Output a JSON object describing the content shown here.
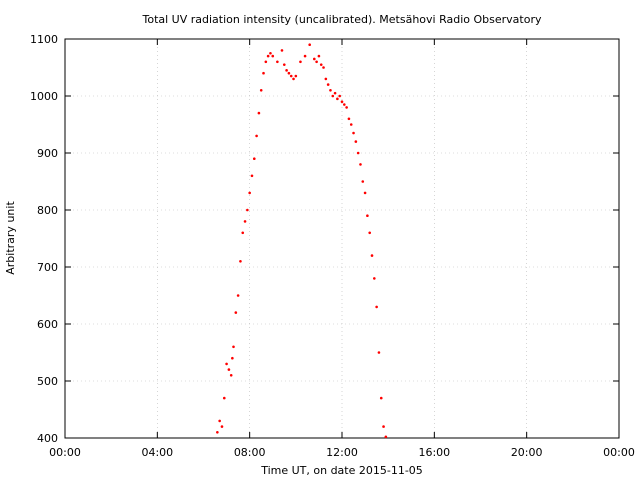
{
  "chart_data": {
    "type": "scatter",
    "title": "Total UV radiation intensity (uncalibrated). Metsähovi Radio Observatory",
    "xlabel": "Time UT, on date 2015-11-05",
    "ylabel": "Arbitrary unit",
    "xlim": [
      0,
      24
    ],
    "ylim": [
      400,
      1100
    ],
    "x_ticks": [
      0,
      4,
      8,
      12,
      16,
      20,
      24
    ],
    "x_tick_labels": [
      "00:00",
      "04:00",
      "08:00",
      "12:00",
      "16:00",
      "20:00",
      "00:00"
    ],
    "y_ticks": [
      400,
      500,
      600,
      700,
      800,
      900,
      1000,
      1100
    ],
    "y_tick_labels": [
      "400",
      "500",
      "600",
      "700",
      "800",
      "900",
      "1000",
      "1100"
    ],
    "grid": true,
    "marker_color": "#ff0000",
    "series": [
      {
        "x": [
          6.6,
          6.7,
          6.8,
          6.9,
          7.0,
          7.1,
          7.2,
          7.25,
          7.3,
          7.4,
          7.5,
          7.6,
          7.7,
          7.8,
          7.9,
          8.0,
          8.1,
          8.2,
          8.3,
          8.4,
          8.5,
          8.6,
          8.7,
          8.8,
          8.9,
          9.0,
          9.2,
          9.4,
          9.5,
          9.6,
          9.7,
          9.8,
          9.9,
          10.0,
          10.2,
          10.4,
          10.6,
          10.8,
          10.9,
          11.0,
          11.1,
          11.2,
          11.3,
          11.4,
          11.5,
          11.6,
          11.7,
          11.8,
          11.9,
          12.0,
          12.1,
          12.2,
          12.3,
          12.4,
          12.5,
          12.6,
          12.7,
          12.8,
          12.9,
          13.0,
          13.1,
          13.2,
          13.3,
          13.4,
          13.5,
          13.6,
          13.7,
          13.8,
          13.9
        ],
        "y": [
          410,
          430,
          420,
          470,
          530,
          520,
          510,
          540,
          560,
          620,
          650,
          710,
          760,
          780,
          800,
          830,
          860,
          890,
          930,
          970,
          1010,
          1040,
          1060,
          1070,
          1075,
          1070,
          1060,
          1080,
          1055,
          1045,
          1040,
          1035,
          1030,
          1035,
          1060,
          1070,
          1090,
          1065,
          1060,
          1070,
          1055,
          1050,
          1030,
          1020,
          1010,
          1000,
          1005,
          995,
          1000,
          990,
          985,
          980,
          960,
          950,
          935,
          920,
          900,
          880,
          850,
          830,
          790,
          760,
          720,
          680,
          630,
          550,
          470,
          420,
          402
        ]
      }
    ]
  }
}
